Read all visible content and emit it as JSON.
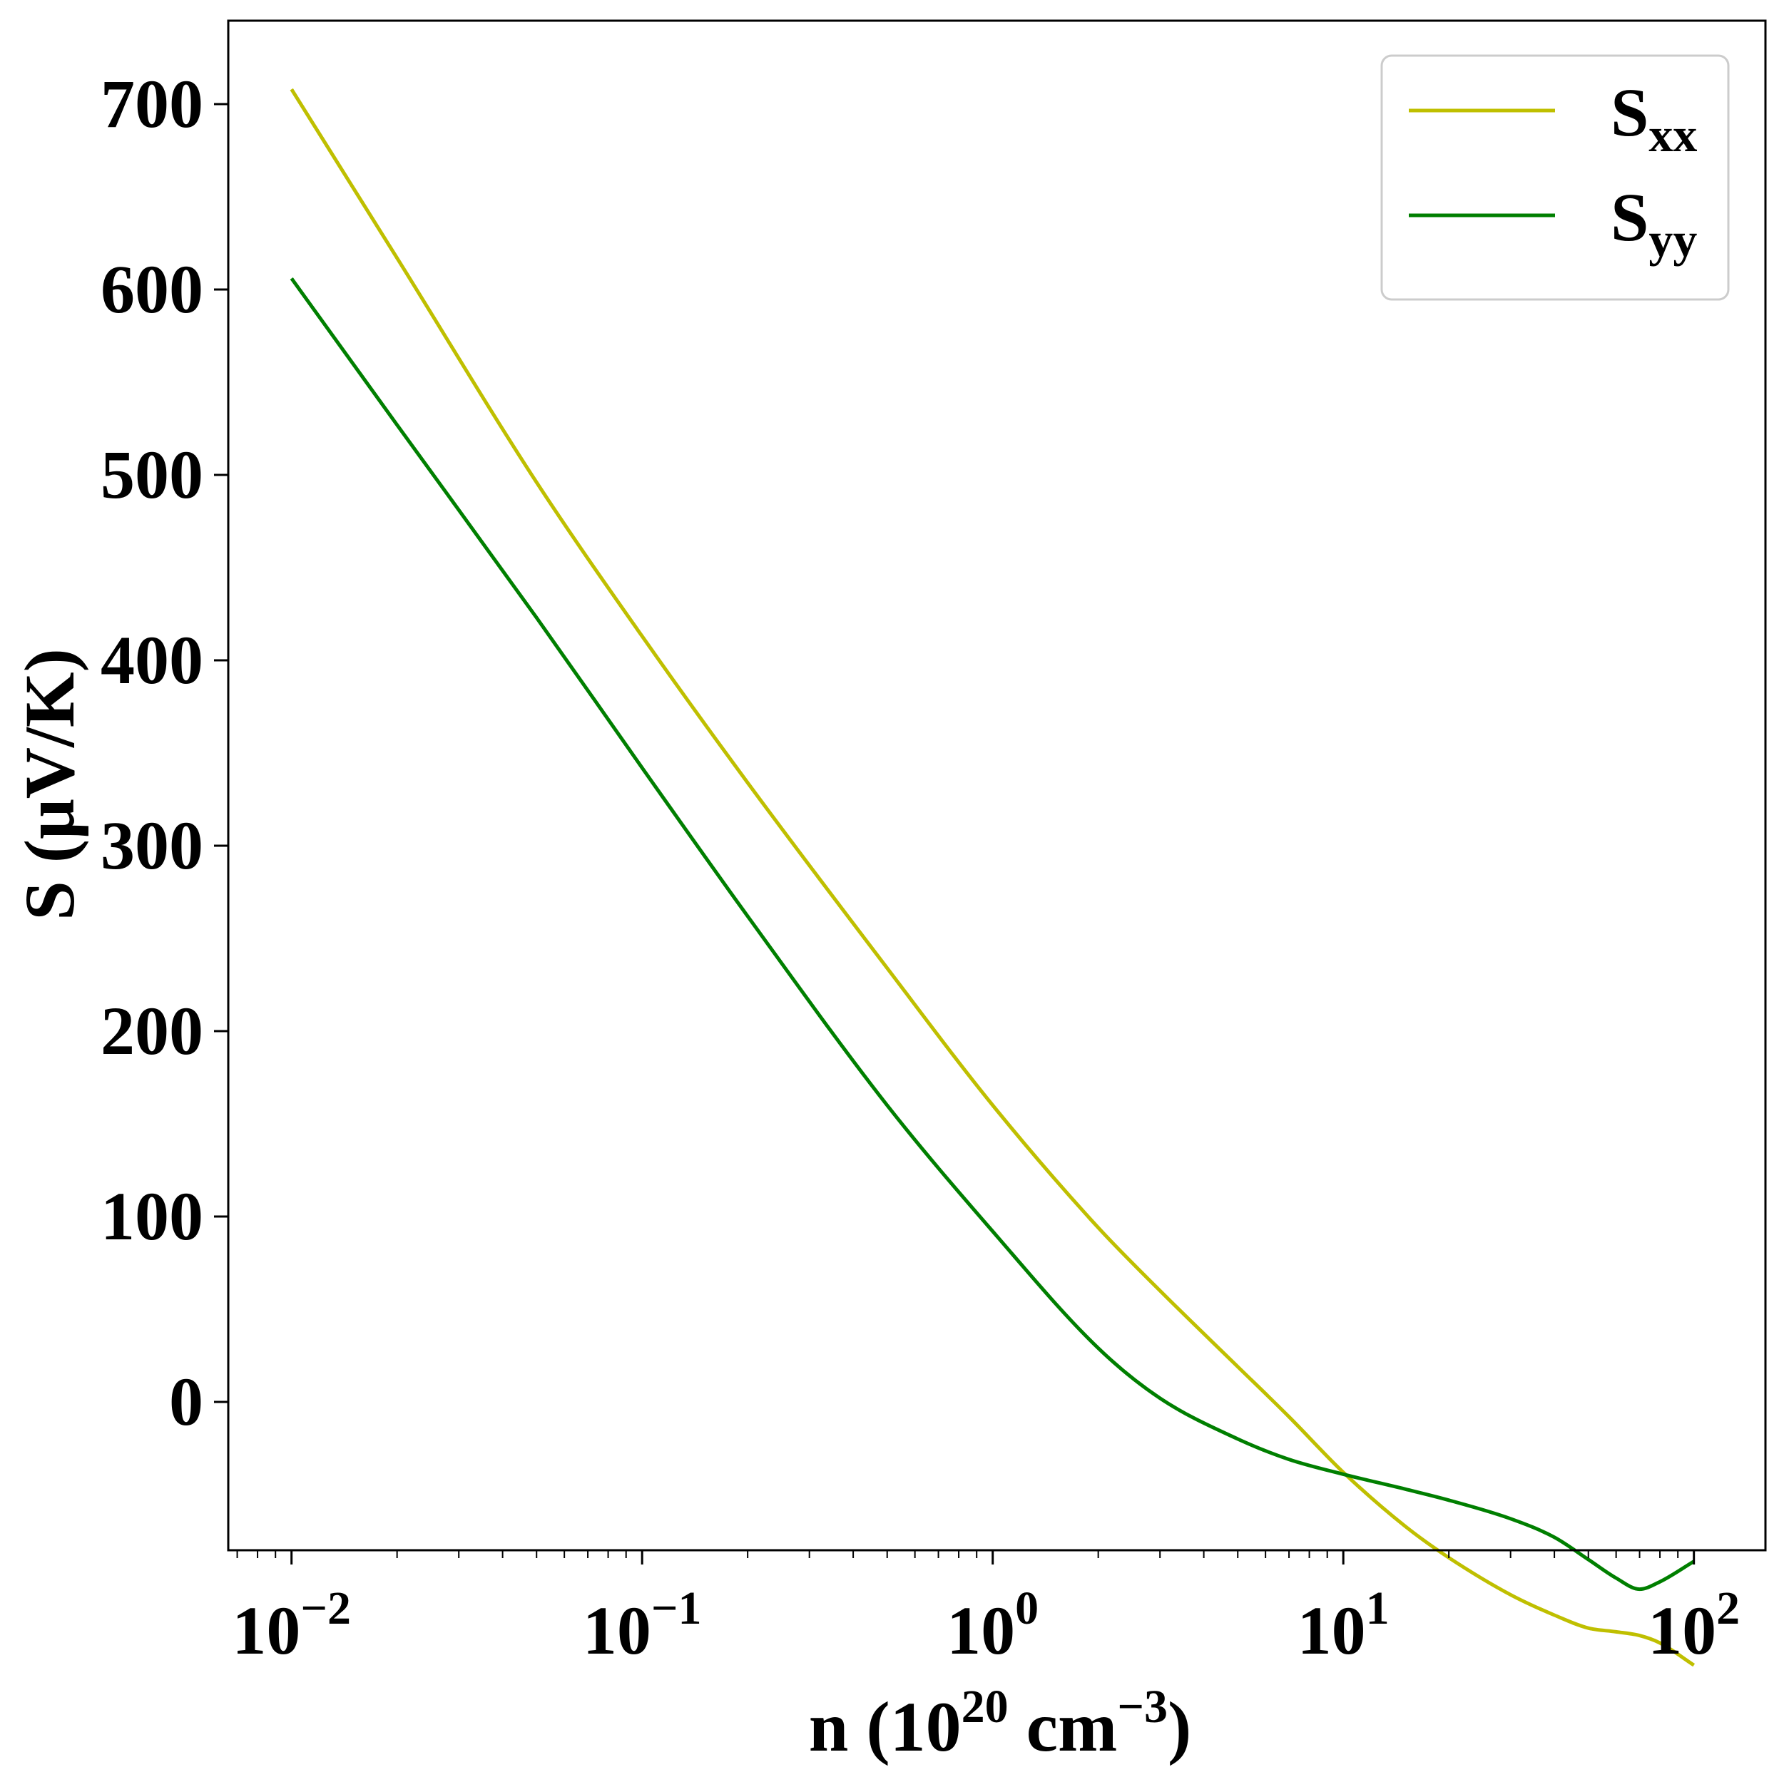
{
  "chart_data": {
    "type": "line",
    "title": "",
    "xlabel": {
      "prefix": "n (10",
      "exp1": "20",
      "mid": " cm",
      "exp2": "−3",
      "suffix": ")"
    },
    "ylabel": "S (μV/K)",
    "xscale": "log",
    "xlim": [
      0.0066,
      160
    ],
    "ylim": [
      -80,
      745
    ],
    "grid": false,
    "legend_position": "top-right",
    "x_ticks": [
      {
        "value": 0.01,
        "base": "10",
        "exp": "−2"
      },
      {
        "value": 0.1,
        "base": "10",
        "exp": "−1"
      },
      {
        "value": 1,
        "base": "10",
        "exp": "0"
      },
      {
        "value": 10,
        "base": "10",
        "exp": "1"
      },
      {
        "value": 100,
        "base": "10",
        "exp": "2"
      }
    ],
    "y_ticks": [
      {
        "value": 0,
        "label": "0"
      },
      {
        "value": 100,
        "label": "100"
      },
      {
        "value": 200,
        "label": "200"
      },
      {
        "value": 300,
        "label": "300"
      },
      {
        "value": 400,
        "label": "400"
      },
      {
        "value": 500,
        "label": "500"
      },
      {
        "value": 600,
        "label": "600"
      },
      {
        "value": 700,
        "label": "700"
      }
    ],
    "series": [
      {
        "name": "S",
        "name_sub": "xx",
        "color": "#bfbf00",
        "x": [
          0.01,
          0.02,
          0.05,
          0.1,
          0.2,
          0.5,
          1,
          2,
          3,
          5,
          7,
          10,
          15,
          20,
          30,
          40,
          50,
          60,
          70,
          80,
          100
        ],
        "y": [
          708,
          617,
          496,
          413,
          334,
          234,
          160,
          94,
          60,
          19,
          -8,
          -38,
          -67,
          -84,
          -104,
          -115,
          -122,
          -124,
          -126,
          -130,
          -142
        ]
      },
      {
        "name": "S",
        "name_sub": "yy",
        "color": "#007f00",
        "x": [
          0.01,
          0.02,
          0.05,
          0.1,
          0.2,
          0.5,
          1,
          2,
          3,
          5,
          7,
          10,
          15,
          20,
          30,
          40,
          50,
          60,
          70,
          80,
          100
        ],
        "y": [
          606,
          527,
          423,
          342,
          262,
          160,
          92,
          29,
          2,
          -20,
          -31,
          -39,
          -47,
          -53,
          -63,
          -73,
          -85,
          -95,
          -101,
          -97,
          -86
        ]
      }
    ]
  }
}
